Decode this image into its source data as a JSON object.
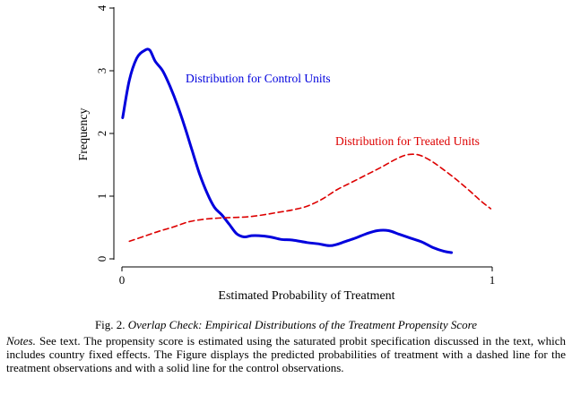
{
  "chart_data": {
    "type": "line",
    "xlabel": "Estimated Probability of Treatment",
    "ylabel": "Frequency",
    "xlim": [
      0,
      1
    ],
    "ylim": [
      0,
      4
    ],
    "x_ticks": [
      "0",
      "1"
    ],
    "y_ticks": [
      "0",
      "1",
      "2",
      "3",
      "4"
    ],
    "grid": false,
    "series": [
      {
        "name": "Distribution for Control Units",
        "style": "solid",
        "color": "#0000dd",
        "x": [
          0.002,
          0.02,
          0.04,
          0.06,
          0.075,
          0.09,
          0.11,
          0.13,
          0.15,
          0.17,
          0.19,
          0.21,
          0.23,
          0.25,
          0.27,
          0.29,
          0.31,
          0.33,
          0.35,
          0.37,
          0.4,
          0.43,
          0.46,
          0.5,
          0.53,
          0.56,
          0.58,
          0.6,
          0.63,
          0.66,
          0.69,
          0.72,
          0.75,
          0.78,
          0.81,
          0.84,
          0.87,
          0.89
        ],
        "y": [
          2.25,
          2.85,
          3.2,
          3.32,
          3.33,
          3.15,
          3.0,
          2.75,
          2.45,
          2.1,
          1.72,
          1.35,
          1.05,
          0.82,
          0.7,
          0.55,
          0.4,
          0.35,
          0.37,
          0.37,
          0.35,
          0.31,
          0.3,
          0.26,
          0.24,
          0.21,
          0.23,
          0.27,
          0.33,
          0.4,
          0.45,
          0.45,
          0.39,
          0.33,
          0.27,
          0.18,
          0.12,
          0.1
        ]
      },
      {
        "name": "Distribution for Treated Units",
        "style": "dashed",
        "color": "#dd0000",
        "x": [
          0.02,
          0.06,
          0.1,
          0.14,
          0.18,
          0.22,
          0.26,
          0.3,
          0.34,
          0.38,
          0.42,
          0.46,
          0.5,
          0.54,
          0.58,
          0.62,
          0.66,
          0.7,
          0.74,
          0.77,
          0.8,
          0.83,
          0.86,
          0.9,
          0.94,
          0.97,
          0.996
        ],
        "y": [
          0.28,
          0.36,
          0.44,
          0.51,
          0.59,
          0.63,
          0.65,
          0.66,
          0.67,
          0.7,
          0.74,
          0.78,
          0.84,
          0.95,
          1.1,
          1.22,
          1.34,
          1.46,
          1.59,
          1.66,
          1.66,
          1.58,
          1.46,
          1.28,
          1.08,
          0.92,
          0.8
        ]
      }
    ]
  },
  "caption": {
    "prefix": "Fig. 2.",
    "title": "Overlap Check: Empirical Distributions of the Treatment Propensity Score"
  },
  "notes": {
    "head": "Notes.",
    "text": " See text. The propensity score is estimated using the saturated probit specification discussed in the text, which includes country fixed effects. The Figure displays the predicted probabilities of treatment with a dashed line for the treatment observations and with a solid line for the control observations."
  }
}
